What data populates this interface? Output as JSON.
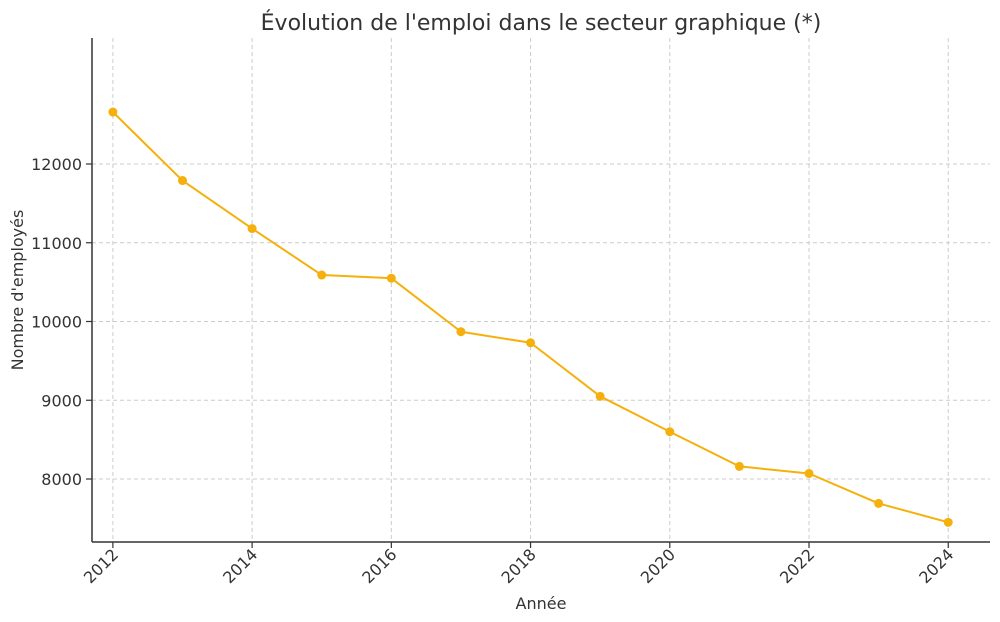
{
  "chart_data": {
    "type": "line",
    "title": "Évolution de l'emploi dans le secteur graphique (*)",
    "xlabel": "Année",
    "ylabel": "Nombre d'employés",
    "x": [
      2012,
      2013,
      2014,
      2015,
      2016,
      2017,
      2018,
      2019,
      2020,
      2021,
      2022,
      2023,
      2024
    ],
    "series": [
      {
        "values": [
          12660,
          11790,
          11180,
          10590,
          10550,
          9870,
          9730,
          9050,
          8600,
          8160,
          8070,
          7690,
          7450
        ]
      }
    ],
    "xlim": [
      2011.7,
      2024.6
    ],
    "ylim": [
      7200,
      13600
    ],
    "xticks": [
      2012,
      2014,
      2016,
      2018,
      2020,
      2022,
      2024
    ],
    "yticks": [
      8000,
      9000,
      10000,
      11000,
      12000
    ],
    "grid": true,
    "color": "#f5b00c"
  }
}
